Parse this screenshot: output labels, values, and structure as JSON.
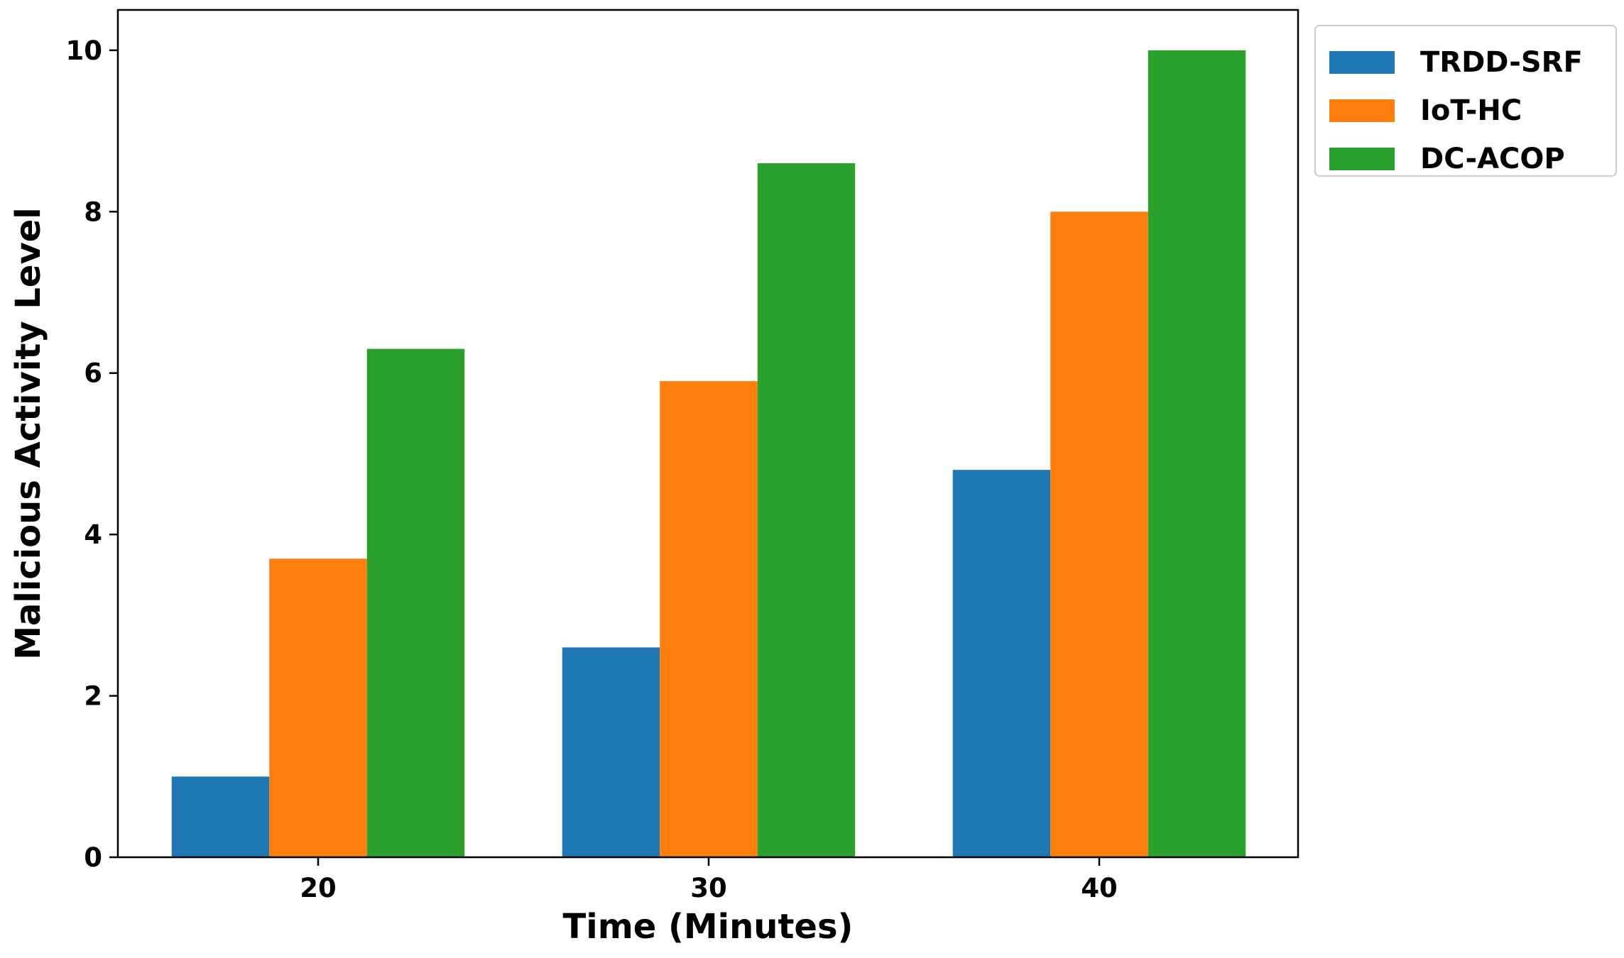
{
  "chart_data": {
    "type": "bar",
    "categories": [
      "20",
      "30",
      "40"
    ],
    "series": [
      {
        "name": "TRDD-SRF",
        "color": "#1f77b4",
        "values": [
          1.0,
          2.6,
          4.8
        ]
      },
      {
        "name": "IoT-HC",
        "color": "#ff7f0e",
        "values": [
          3.7,
          5.9,
          8.0
        ]
      },
      {
        "name": "DC-ACOP",
        "color": "#2ca02c",
        "values": [
          6.3,
          8.6,
          10.0
        ]
      }
    ],
    "xlabel": "Time (Minutes)",
    "ylabel": "Malicious Activity Level",
    "ylim": [
      0,
      10.5
    ],
    "yticks": [
      0,
      2,
      4,
      6,
      8,
      10
    ],
    "grid": false,
    "legend_position": "outside-top-right"
  }
}
